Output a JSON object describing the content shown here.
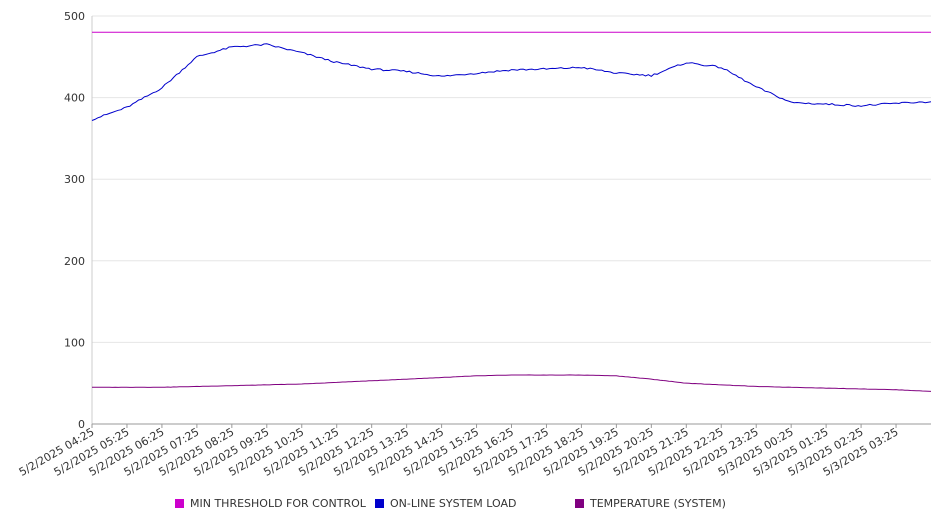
{
  "chart_data": {
    "type": "line",
    "title": "",
    "xlabel": "",
    "ylabel": "",
    "ylim": [
      0,
      500
    ],
    "y_ticks": [
      0,
      100,
      200,
      300,
      400,
      500
    ],
    "grid": "horizontal",
    "legend_position": "bottom",
    "x_tick_labels": [
      "5/2/2025 04:25",
      "5/2/2025 05:25",
      "5/2/2025 06:25",
      "5/2/2025 07:25",
      "5/2/2025 08:25",
      "5/2/2025 09:25",
      "5/2/2025 10:25",
      "5/2/2025 11:25",
      "5/2/2025 12:25",
      "5/2/2025 13:25",
      "5/2/2025 14:25",
      "5/2/2025 15:25",
      "5/2/2025 16:25",
      "5/2/2025 17:25",
      "5/2/2025 18:25",
      "5/2/2025 19:25",
      "5/2/2025 20:25",
      "5/2/2025 21:25",
      "5/2/2025 22:25",
      "5/2/2025 23:25",
      "5/3/2025 00:25",
      "5/3/2025 01:25",
      "5/3/2025 02:25",
      "5/3/2025 03:25"
    ],
    "x_range": [
      "5/2/2025 04:25",
      "5/3/2025 04:25"
    ],
    "x": [
      "5/2/2025 04:25",
      "5/2/2025 05:25",
      "5/2/2025 06:25",
      "5/2/2025 07:25",
      "5/2/2025 08:25",
      "5/2/2025 09:25",
      "5/2/2025 10:25",
      "5/2/2025 11:25",
      "5/2/2025 12:25",
      "5/2/2025 13:25",
      "5/2/2025 14:25",
      "5/2/2025 15:25",
      "5/2/2025 16:25",
      "5/2/2025 17:25",
      "5/2/2025 18:25",
      "5/2/2025 19:25",
      "5/2/2025 20:25",
      "5/2/2025 21:25",
      "5/2/2025 22:25",
      "5/2/2025 23:25",
      "5/3/2025 00:25",
      "5/3/2025 01:25",
      "5/3/2025 02:25",
      "5/3/2025 03:25",
      "5/3/2025 04:25"
    ],
    "series": [
      {
        "name": "MIN THRESHOLD FOR CONTROL",
        "color": "#cc00cc",
        "values": [
          480,
          480,
          480,
          480,
          480,
          480,
          480,
          480,
          480,
          480,
          480,
          480,
          480,
          480,
          480,
          480,
          480,
          480,
          480,
          480,
          480,
          480,
          480,
          480,
          480
        ]
      },
      {
        "name": "ON-LINE SYSTEM LOAD",
        "color": "#0000cc",
        "values": [
          373,
          388,
          412,
          450,
          462,
          465,
          455,
          443,
          435,
          432,
          426,
          430,
          434,
          435,
          437,
          430,
          427,
          443,
          437,
          413,
          394,
          392,
          390,
          393,
          395
        ]
      },
      {
        "name": "TEMPERATURE (SYSTEM)",
        "color": "#800080",
        "values": [
          45,
          45,
          45,
          46,
          47,
          48,
          49,
          51,
          53,
          55,
          57,
          59,
          60,
          60,
          60,
          59,
          55,
          50,
          48,
          46,
          45,
          44,
          43,
          42,
          40
        ]
      }
    ]
  }
}
